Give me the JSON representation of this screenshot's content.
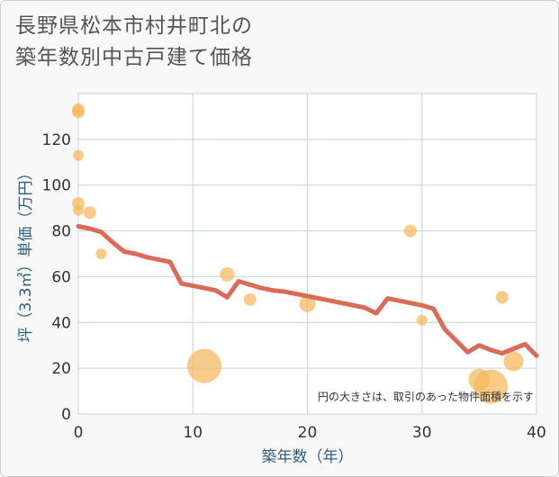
{
  "title_lines": [
    "長野県松本市村井町北の",
    "築年数別中古戸建て価格"
  ],
  "chart_data": {
    "type": "scatter",
    "xlabel": "築年数（年）",
    "ylabel": "坪（3.3㎡）単価（万円）",
    "xlim": [
      0,
      40
    ],
    "ylim": [
      0,
      140
    ],
    "xticks": [
      0,
      10,
      20,
      30,
      40
    ],
    "yticks": [
      0,
      20,
      40,
      60,
      80,
      100,
      120
    ],
    "grid": true,
    "note": "円の大きさは、取引のあった物件面積を示す",
    "colors": {
      "points": "#f5b85a",
      "line": "#d96b57",
      "grid": "#c4d4df",
      "background": "#ffffff"
    },
    "points": [
      {
        "x": 0,
        "y": 133,
        "r": 7
      },
      {
        "x": 0,
        "y": 132,
        "r": 7
      },
      {
        "x": 0,
        "y": 113,
        "r": 6
      },
      {
        "x": 0,
        "y": 92,
        "r": 7
      },
      {
        "x": 0,
        "y": 89,
        "r": 6
      },
      {
        "x": 1,
        "y": 88,
        "r": 7
      },
      {
        "x": 2,
        "y": 70,
        "r": 6
      },
      {
        "x": 11,
        "y": 21,
        "r": 19
      },
      {
        "x": 13,
        "y": 61,
        "r": 8
      },
      {
        "x": 15,
        "y": 50,
        "r": 7
      },
      {
        "x": 20,
        "y": 48,
        "r": 9
      },
      {
        "x": 29,
        "y": 80,
        "r": 7
      },
      {
        "x": 30,
        "y": 41,
        "r": 6
      },
      {
        "x": 35,
        "y": 15,
        "r": 12
      },
      {
        "x": 36,
        "y": 12,
        "r": 19
      },
      {
        "x": 37,
        "y": 51,
        "r": 7
      },
      {
        "x": 38,
        "y": 23,
        "r": 11
      }
    ],
    "trend_line": {
      "x": [
        0,
        1,
        2,
        3,
        4,
        5,
        6,
        7,
        8,
        9,
        10,
        11,
        12,
        13,
        14,
        15,
        16,
        17,
        18,
        19,
        20,
        21,
        22,
        23,
        24,
        25,
        26,
        27,
        28,
        29,
        30,
        31,
        32,
        33,
        34,
        35,
        36,
        37,
        38,
        39,
        40
      ],
      "y": [
        82,
        81,
        79.5,
        75,
        71,
        70,
        68.5,
        67.5,
        66.5,
        57,
        56,
        55,
        54,
        51,
        58,
        56.5,
        55,
        54,
        53.5,
        52.5,
        51.5,
        50.5,
        49.5,
        48.5,
        47.5,
        46.5,
        44,
        50.5,
        49.5,
        48.5,
        47.5,
        46,
        37,
        32,
        27,
        30,
        28,
        26.5,
        28.5,
        30.5,
        25.5
      ]
    }
  }
}
